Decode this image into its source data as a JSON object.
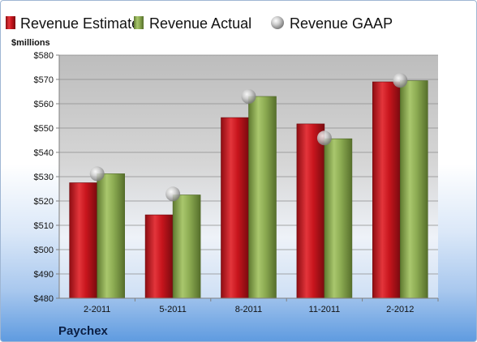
{
  "chart_data": {
    "type": "bar",
    "unit_label": "$millions",
    "company": "Paychex",
    "categories": [
      "2-2011",
      "5-2011",
      "8-2011",
      "11-2011",
      "2-2012"
    ],
    "series": [
      {
        "name": "Revenue Estimate",
        "kind": "bar",
        "color": "#c0141c",
        "values": [
          527.5,
          514.3,
          554.3,
          551.7,
          569.0
        ]
      },
      {
        "name": "Revenue Actual",
        "kind": "bar",
        "color": "#8cab52",
        "values": [
          531.2,
          522.5,
          563.0,
          545.6,
          569.5
        ]
      },
      {
        "name": "Revenue GAAP",
        "kind": "marker",
        "color": "#b8b8b8",
        "values": [
          531.2,
          522.9,
          563.0,
          545.9,
          569.6
        ]
      }
    ],
    "ylim": [
      480,
      580
    ],
    "yticks": [
      480,
      490,
      500,
      510,
      520,
      530,
      540,
      550,
      560,
      570,
      580
    ],
    "ytick_labels": [
      "$480",
      "$490",
      "$500",
      "$510",
      "$520",
      "$530",
      "$540",
      "$550",
      "$560",
      "$570",
      "$580"
    ],
    "grid": true,
    "legend_position": "top"
  }
}
